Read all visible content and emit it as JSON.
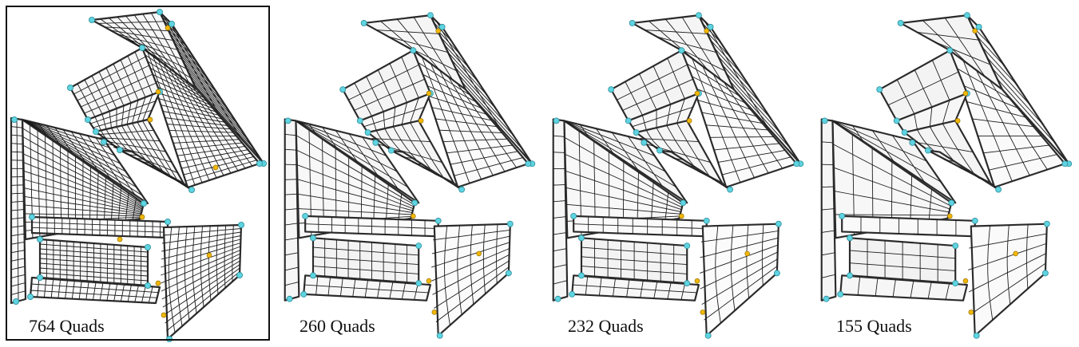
{
  "figure": {
    "colors": {
      "surface": "#e9e9e9",
      "surface_shadow": "#c9c9c9",
      "mesh_line": "#1a1a1a",
      "boundary": "#2b2b2b",
      "corner_vertex": "#5fd3e0",
      "singular_vertex": "#f2b705"
    },
    "panels": [
      {
        "caption": "764 Quads",
        "quads": 764,
        "highlighted": true
      },
      {
        "caption": "260 Quads",
        "quads": 260,
        "highlighted": false
      },
      {
        "caption": "232 Quads",
        "quads": 232,
        "highlighted": false
      },
      {
        "caption": "155 Quads",
        "quads": 155,
        "highlighted": false
      }
    ]
  }
}
